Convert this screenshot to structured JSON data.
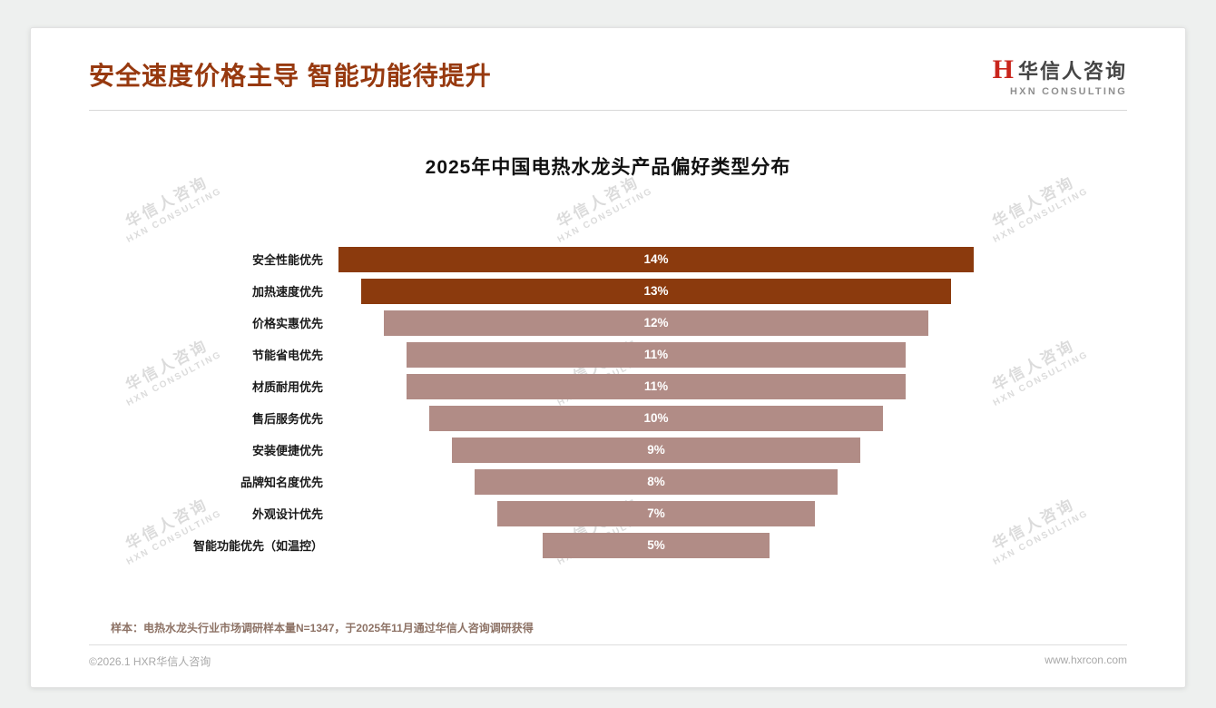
{
  "header": {
    "title": "安全速度价格主导 智能功能待提升"
  },
  "logo": {
    "mark": "H",
    "name": "华信人咨询",
    "subtitle": "HXN CONSULTING"
  },
  "watermark": {
    "line1": "华信人咨询",
    "line2": "HXN CONSULTING"
  },
  "chart_data": {
    "type": "bar",
    "variant": "centered-horizontal-funnel",
    "title": "2025年中国电热水龙头产品偏好类型分布",
    "categories": [
      "安全性能优先",
      "加热速度优先",
      "价格实惠优先",
      "节能省电优先",
      "材质耐用优先",
      "售后服务优先",
      "安装便捷优先",
      "品牌知名度优先",
      "外观设计优先",
      "智能功能优先（如温控）"
    ],
    "values": [
      14,
      13,
      12,
      11,
      11,
      10,
      9,
      8,
      7,
      5
    ],
    "value_labels": [
      "14%",
      "13%",
      "12%",
      "11%",
      "11%",
      "10%",
      "9%",
      "8%",
      "7%",
      "5%"
    ],
    "xlim": [
      0,
      14
    ],
    "grid": false,
    "legend": "none",
    "highlight_count": 2,
    "colors": {
      "highlight": "#8B3A0D",
      "normal": "#B18C86"
    }
  },
  "footer": {
    "sample_note": "样本：电热水龙头行业市场调研样本量N=1347，于2025年11月通过华信人咨询调研获得",
    "left": "©2026.1 HXR华信人咨询",
    "right": "www.hxrcon.com"
  }
}
